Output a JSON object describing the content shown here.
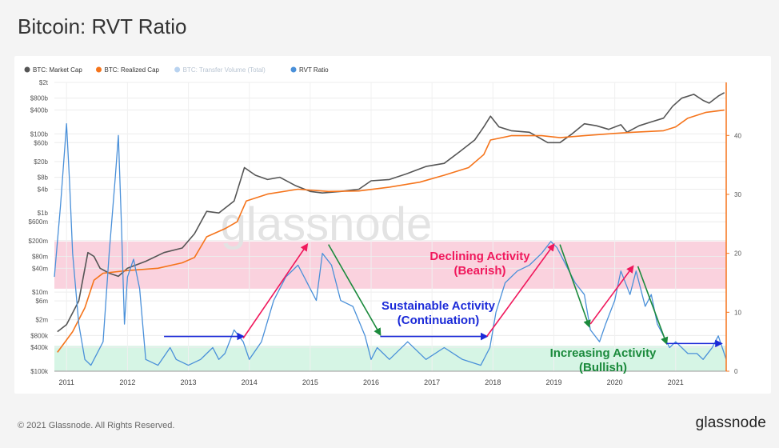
{
  "page": {
    "title": "Bitcoin: RVT Ratio",
    "copyright": "© 2021 Glassnode. All Rights Reserved.",
    "brand": "glassnode",
    "watermark": "glassnode"
  },
  "colors": {
    "market_cap": "#555555",
    "realized_cap": "#f5741b",
    "transfer_volume": "#b9d3f0",
    "rvt_ratio": "#4a90d9",
    "bearish_band": "#f8c3d3",
    "bullish_band": "#c8f1dc",
    "up_arrow": "#f0185c",
    "down_arrow": "#1b8a3c",
    "flat_arrow": "#1b2ad8",
    "annotation_blue": "#1b2ad8",
    "annotation_red": "#f0185c",
    "annotation_green": "#1b8a3c"
  },
  "chart_data": {
    "type": "line",
    "title": "Bitcoin: RVT Ratio",
    "legend_position": "top-left",
    "legend": [
      {
        "name": "BTC: Market Cap",
        "color": "#555555",
        "dimmed": false
      },
      {
        "name": "BTC: Realized Cap",
        "color": "#f5741b",
        "dimmed": false
      },
      {
        "name": "BTC: Transfer Volume (Total)",
        "color": "#b9d3f0",
        "dimmed": true
      },
      {
        "name": "RVT Ratio",
        "color": "#4a90d9",
        "dimmed": false
      }
    ],
    "x_axis": {
      "range": [
        2010.8,
        2021.83
      ],
      "ticks": [
        {
          "value": 2011,
          "label": "2011"
        },
        {
          "value": 2012,
          "label": "2012"
        },
        {
          "value": 2013,
          "label": "2013"
        },
        {
          "value": 2014,
          "label": "2014"
        },
        {
          "value": 2015,
          "label": "2015"
        },
        {
          "value": 2016,
          "label": "2016"
        },
        {
          "value": 2017,
          "label": "2017"
        },
        {
          "value": 2018,
          "label": "2018"
        },
        {
          "value": 2019,
          "label": "2019"
        },
        {
          "value": 2020,
          "label": "2020"
        },
        {
          "value": 2021,
          "label": "2021"
        }
      ]
    },
    "y_left": {
      "scale": "log",
      "range": [
        100000,
        2000000000000
      ],
      "ticks": [
        {
          "value": 2000000000000.0,
          "label": "$2t"
        },
        {
          "value": 800000000000.0,
          "label": "$800b"
        },
        {
          "value": 400000000000.0,
          "label": "$400b"
        },
        {
          "value": 100000000000.0,
          "label": "$100b"
        },
        {
          "value": 60000000000.0,
          "label": "$60b"
        },
        {
          "value": 20000000000.0,
          "label": "$20b"
        },
        {
          "value": 8000000000.0,
          "label": "$8b"
        },
        {
          "value": 4000000000.0,
          "label": "$4b"
        },
        {
          "value": 1000000000.0,
          "label": "$1b"
        },
        {
          "value": 600000000.0,
          "label": "$600m"
        },
        {
          "value": 200000000.0,
          "label": "$200m"
        },
        {
          "value": 80000000.0,
          "label": "$80m"
        },
        {
          "value": 40000000.0,
          "label": "$40m"
        },
        {
          "value": 10000000.0,
          "label": "$10m"
        },
        {
          "value": 6000000.0,
          "label": "$6m"
        },
        {
          "value": 2000000.0,
          "label": "$2m"
        },
        {
          "value": 800000.0,
          "label": "$800k"
        },
        {
          "value": 400000.0,
          "label": "$400k"
        },
        {
          "value": 100000.0,
          "label": "$100k"
        }
      ]
    },
    "y_right": {
      "scale": "linear",
      "range": [
        0,
        49
      ],
      "ticks": [
        {
          "value": 0,
          "label": "0"
        },
        {
          "value": 10,
          "label": "10"
        },
        {
          "value": 20,
          "label": "20"
        },
        {
          "value": 30,
          "label": "30"
        },
        {
          "value": 40,
          "label": "40"
        }
      ]
    },
    "bands": [
      {
        "name": "bearish",
        "from": 14,
        "to": 22,
        "color": "#f8c3d3"
      },
      {
        "name": "bullish",
        "from": 0,
        "to": 4.3,
        "color": "#c8f1dc"
      }
    ],
    "series": [
      {
        "name": "BTC: Market Cap",
        "axis": "left",
        "color": "#555555",
        "x": [
          2010.85,
          2011.0,
          2011.2,
          2011.35,
          2011.45,
          2011.55,
          2011.7,
          2011.85,
          2012.0,
          2012.3,
          2012.6,
          2012.9,
          2013.1,
          2013.3,
          2013.5,
          2013.75,
          2013.92,
          2014.1,
          2014.3,
          2014.5,
          2014.75,
          2015.0,
          2015.2,
          2015.5,
          2015.8,
          2016.0,
          2016.3,
          2016.6,
          2016.9,
          2017.2,
          2017.45,
          2017.7,
          2017.85,
          2017.96,
          2018.1,
          2018.3,
          2018.6,
          2018.9,
          2019.1,
          2019.3,
          2019.5,
          2019.7,
          2019.9,
          2020.1,
          2020.2,
          2020.4,
          2020.6,
          2020.8,
          2020.95,
          2021.1,
          2021.3,
          2021.45,
          2021.55,
          2021.7,
          2021.8
        ],
        "values": [
          1000000,
          1500000,
          6000000,
          100000000,
          80000000,
          40000000,
          30000000,
          25000000,
          40000000,
          60000000,
          100000000,
          130000000,
          300000000,
          1100000000,
          1000000000,
          2000000000,
          14000000000,
          9000000000,
          7000000000,
          8000000000,
          5000000000,
          3500000000,
          3200000000,
          3500000000,
          4000000000,
          6500000000,
          7000000000,
          10000000000,
          15000000000,
          18000000000,
          35000000000,
          70000000000,
          150000000000,
          280000000000,
          150000000000,
          120000000000,
          110000000000,
          60000000000,
          60000000000,
          100000000000,
          180000000000,
          160000000000,
          130000000000,
          170000000000,
          110000000000,
          160000000000,
          200000000000,
          250000000000,
          500000000000,
          800000000000,
          1000000000000,
          700000000000,
          600000000000,
          900000000000,
          1100000000000
        ]
      },
      {
        "name": "BTC: Realized Cap",
        "axis": "left",
        "color": "#f5741b",
        "x": [
          2010.85,
          2011.1,
          2011.3,
          2011.45,
          2011.6,
          2012.0,
          2012.5,
          2012.9,
          2013.1,
          2013.3,
          2013.6,
          2013.8,
          2013.95,
          2014.3,
          2014.8,
          2015.3,
          2015.8,
          2016.3,
          2016.8,
          2017.2,
          2017.6,
          2017.85,
          2017.96,
          2018.3,
          2018.8,
          2019.1,
          2019.5,
          2019.9,
          2020.3,
          2020.8,
          2021.0,
          2021.2,
          2021.5,
          2021.8
        ],
        "values": [
          300000,
          1000000,
          4000000,
          20000000,
          30000000,
          35000000,
          40000000,
          55000000,
          75000000,
          250000000,
          400000000,
          600000000,
          2000000000,
          3000000000,
          4000000000,
          3500000000,
          3600000000,
          4500000000,
          6000000000,
          9000000000,
          14000000000,
          30000000000,
          70000000000,
          90000000000,
          90000000000,
          80000000000,
          90000000000,
          100000000000,
          110000000000,
          120000000000,
          150000000000,
          250000000000,
          350000000000,
          400000000000
        ]
      },
      {
        "name": "RVT Ratio",
        "axis": "right",
        "color": "#4a90d9",
        "x": [
          2010.8,
          2010.9,
          2011.0,
          2011.05,
          2011.1,
          2011.2,
          2011.3,
          2011.4,
          2011.5,
          2011.6,
          2011.7,
          2011.8,
          2011.85,
          2011.9,
          2011.95,
          2012.0,
          2012.1,
          2012.2,
          2012.3,
          2012.5,
          2012.7,
          2012.8,
          2013.0,
          2013.2,
          2013.4,
          2013.5,
          2013.6,
          2013.75,
          2013.9,
          2014.0,
          2014.2,
          2014.4,
          2014.6,
          2014.8,
          2015.0,
          2015.1,
          2015.2,
          2015.35,
          2015.5,
          2015.7,
          2015.9,
          2016.0,
          2016.1,
          2016.3,
          2016.6,
          2016.9,
          2017.2,
          2017.5,
          2017.8,
          2017.95,
          2018.05,
          2018.2,
          2018.4,
          2018.6,
          2018.8,
          2018.95,
          2019.05,
          2019.2,
          2019.35,
          2019.5,
          2019.6,
          2019.75,
          2019.85,
          2020.0,
          2020.1,
          2020.25,
          2020.35,
          2020.5,
          2020.6,
          2020.7,
          2020.8,
          2020.9,
          2021.0,
          2021.2,
          2021.35,
          2021.45,
          2021.6,
          2021.7,
          2021.83
        ],
        "values": [
          16,
          28,
          42,
          32,
          20,
          8,
          2,
          1,
          3,
          5,
          20,
          33,
          40,
          25,
          8,
          16,
          19,
          14,
          2,
          1,
          4,
          2,
          1,
          2,
          4,
          2,
          3,
          7,
          5,
          2,
          5,
          12,
          16,
          18,
          14,
          12,
          20,
          18,
          12,
          11,
          6,
          2,
          4,
          2,
          5,
          2,
          4,
          2,
          1,
          4,
          10,
          15,
          17,
          18,
          20,
          22,
          21,
          18,
          15,
          13,
          7,
          5,
          8,
          12,
          17,
          13,
          17,
          11,
          13,
          8,
          6,
          4,
          5,
          3,
          3,
          2,
          4,
          6,
          2
        ]
      }
    ]
  },
  "annotations": {
    "declining_title": "Declining Activity",
    "declining_sub": "(Bearish)",
    "sustainable_title": "Sustainable Activity",
    "sustainable_sub": "(Continuation)",
    "increasing_title": "Increasing Activity",
    "increasing_sub": "(Bullish)"
  }
}
